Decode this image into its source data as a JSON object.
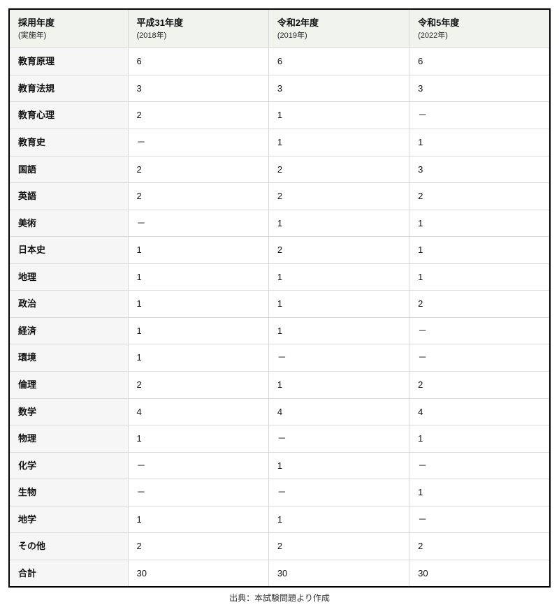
{
  "table": {
    "header_row_label_main": "採用年度",
    "header_row_label_sub": "(実施年)",
    "year_columns": [
      {
        "main": "平成31年度",
        "sub": "(2018年)"
      },
      {
        "main": "令和2年度",
        "sub": "(2019年)"
      },
      {
        "main": "令和5年度",
        "sub": "(2022年)"
      }
    ],
    "rows": [
      {
        "label": "教育原理",
        "values": [
          "6",
          "6",
          "6"
        ]
      },
      {
        "label": "教育法規",
        "values": [
          "3",
          "3",
          "3"
        ]
      },
      {
        "label": "教育心理",
        "values": [
          "2",
          "1",
          "－"
        ]
      },
      {
        "label": "教育史",
        "values": [
          "－",
          "1",
          "1"
        ]
      },
      {
        "label": "国語",
        "values": [
          "2",
          "2",
          "3"
        ]
      },
      {
        "label": "英語",
        "values": [
          "2",
          "2",
          "2"
        ]
      },
      {
        "label": "美術",
        "values": [
          "－",
          "1",
          "1"
        ]
      },
      {
        "label": "日本史",
        "values": [
          "1",
          "2",
          "1"
        ]
      },
      {
        "label": "地理",
        "values": [
          "1",
          "1",
          "1"
        ]
      },
      {
        "label": "政治",
        "values": [
          "1",
          "1",
          "2"
        ]
      },
      {
        "label": "経済",
        "values": [
          "1",
          "1",
          "－"
        ]
      },
      {
        "label": "環境",
        "values": [
          "1",
          "－",
          "－"
        ]
      },
      {
        "label": "倫理",
        "values": [
          "2",
          "1",
          "2"
        ]
      },
      {
        "label": "数学",
        "values": [
          "4",
          "4",
          "4"
        ]
      },
      {
        "label": "物理",
        "values": [
          "1",
          "－",
          "1"
        ]
      },
      {
        "label": "化学",
        "values": [
          "－",
          "1",
          "－"
        ]
      },
      {
        "label": "生物",
        "values": [
          "－",
          "－",
          "1"
        ]
      },
      {
        "label": "地学",
        "values": [
          "1",
          "1",
          "－"
        ]
      },
      {
        "label": "その他",
        "values": [
          "2",
          "2",
          "2"
        ]
      },
      {
        "label": "合計",
        "values": [
          "30",
          "30",
          "30"
        ]
      }
    ]
  },
  "source_text": "出典：本試験問題より作成",
  "colors": {
    "table_border": "#000000",
    "cell_border": "#d9d9d9",
    "header_bg": "#f0f4ec",
    "row_label_bg": "#f6f6f6",
    "text": "#111111",
    "page_bg": "#ffffff"
  }
}
